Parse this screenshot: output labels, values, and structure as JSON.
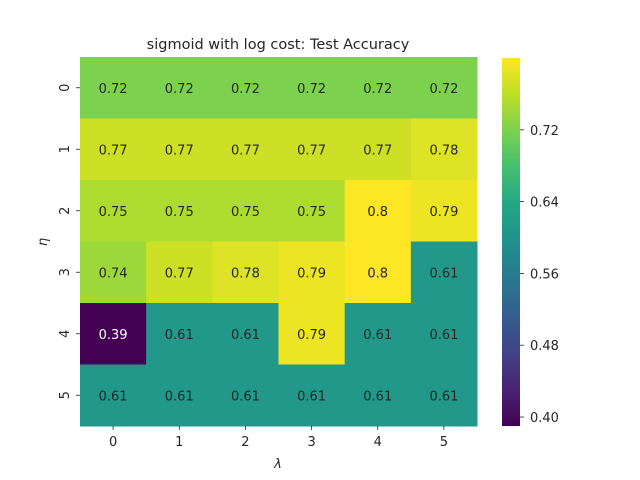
{
  "chart_data": {
    "type": "heatmap",
    "title": "sigmoid with log cost: Test Accuracy",
    "xlabel": "λ",
    "ylabel": "η",
    "x_categories": [
      "0",
      "1",
      "2",
      "3",
      "4",
      "5"
    ],
    "y_categories": [
      "0",
      "1",
      "2",
      "3",
      "4",
      "5"
    ],
    "values": [
      [
        0.72,
        0.72,
        0.72,
        0.72,
        0.72,
        0.72
      ],
      [
        0.77,
        0.77,
        0.77,
        0.77,
        0.77,
        0.78
      ],
      [
        0.75,
        0.75,
        0.75,
        0.75,
        0.8,
        0.79
      ],
      [
        0.74,
        0.77,
        0.78,
        0.79,
        0.8,
        0.61
      ],
      [
        0.39,
        0.61,
        0.61,
        0.79,
        0.61,
        0.61
      ],
      [
        0.61,
        0.61,
        0.61,
        0.61,
        0.61,
        0.61
      ]
    ],
    "colorbar": {
      "colormap": "viridis",
      "vmin": 0.39,
      "vmax": 0.8,
      "ticks": [
        "0.40",
        "0.48",
        "0.56",
        "0.64",
        "0.72"
      ]
    }
  }
}
